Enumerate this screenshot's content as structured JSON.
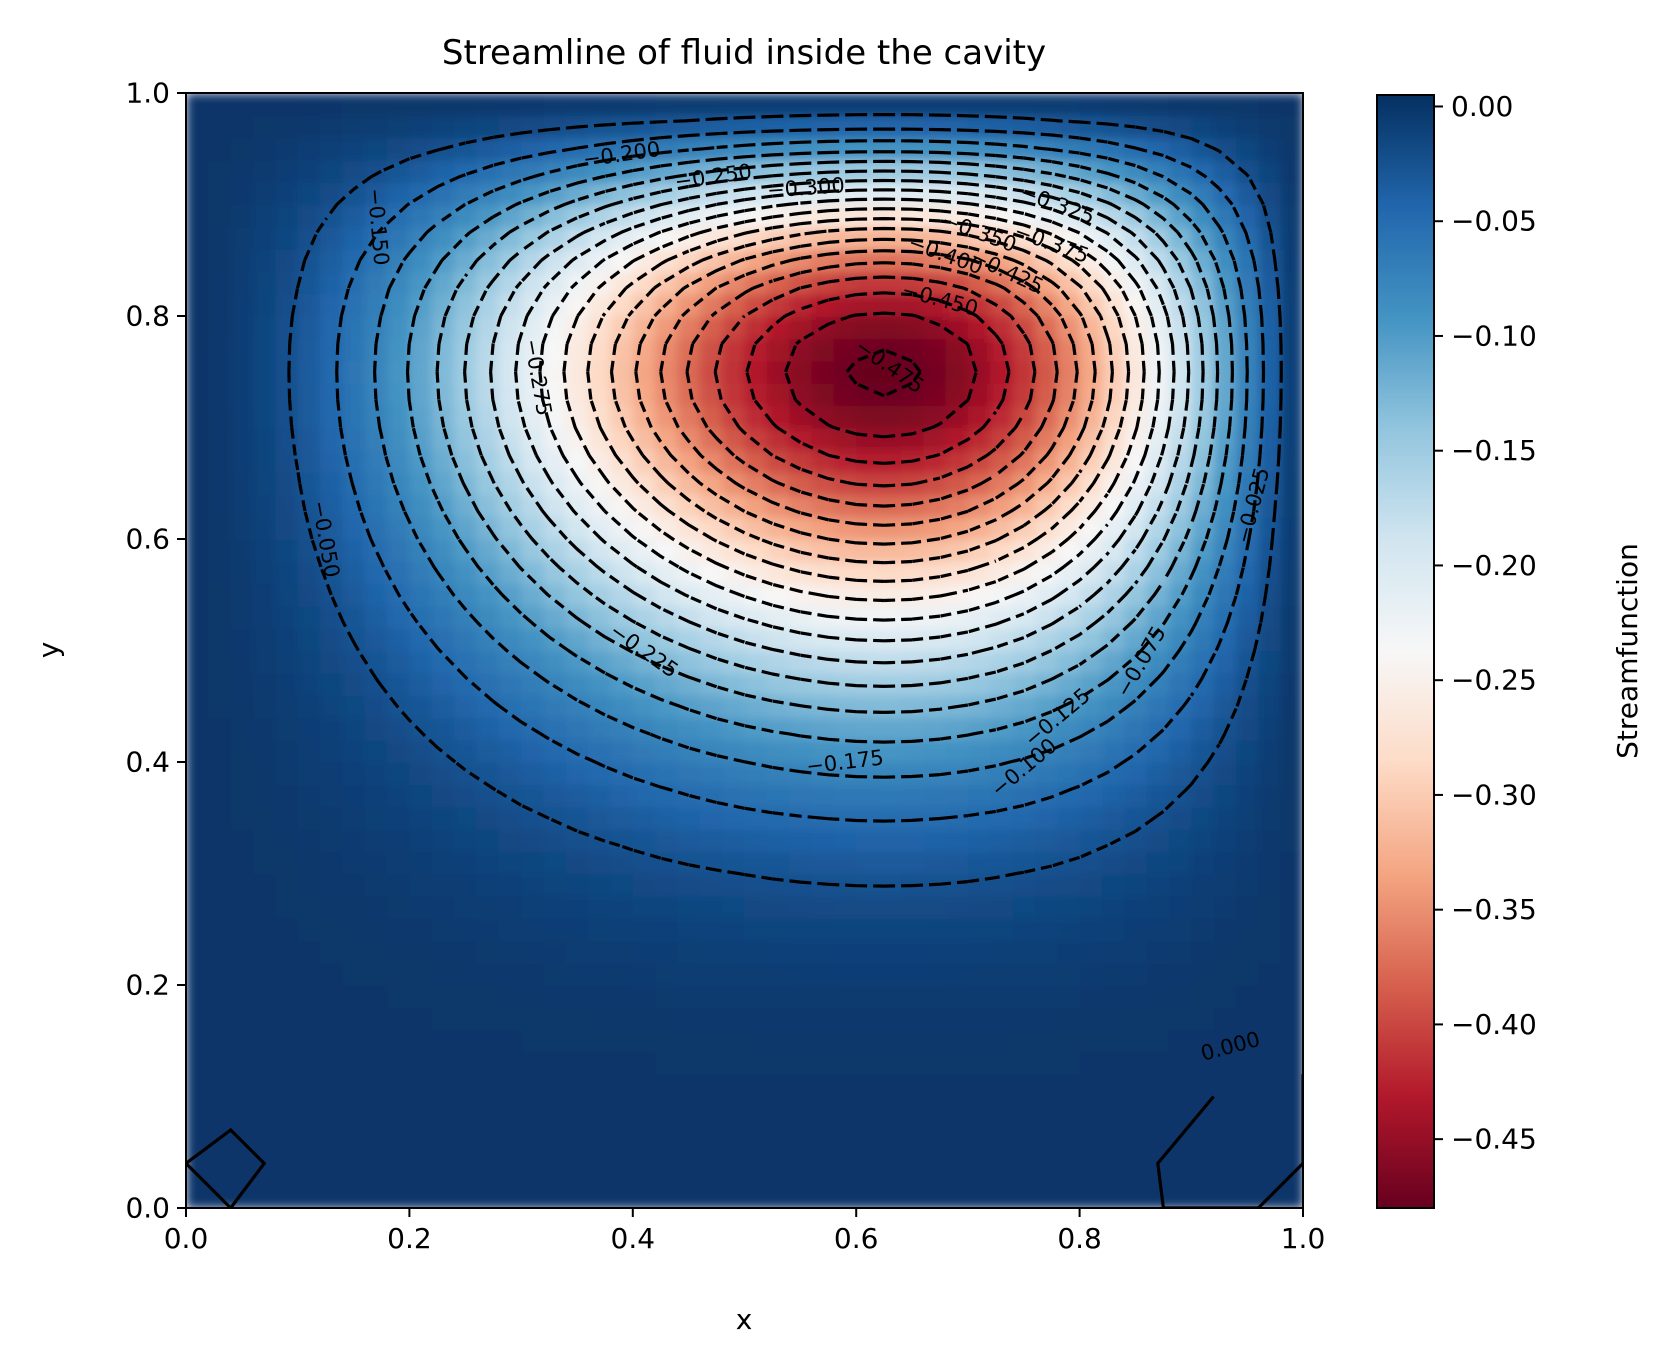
{
  "chart_data": {
    "type": "contour",
    "title": "Streamline of fluid inside the cavity",
    "xlabel": "x",
    "ylabel": "y",
    "xlim": [
      0.0,
      1.0
    ],
    "ylim": [
      0.0,
      1.0
    ],
    "x_ticks": [
      "0.0",
      "0.2",
      "0.4",
      "0.6",
      "0.8",
      "1.0"
    ],
    "y_ticks": [
      "0.0",
      "0.2",
      "0.4",
      "0.6",
      "0.8",
      "1.0"
    ],
    "colormap": "RdBu",
    "vortex_center": [
      0.625,
      0.75
    ],
    "min_value": -0.48,
    "contour_levels": [
      0.0,
      -0.025,
      -0.05,
      -0.075,
      -0.1,
      -0.125,
      -0.15,
      -0.175,
      -0.2,
      -0.225,
      -0.25,
      -0.275,
      -0.3,
      -0.325,
      -0.35,
      -0.375,
      -0.4,
      -0.425,
      -0.45,
      -0.475
    ],
    "contour_labels": [
      {
        "text": "0.000",
        "x": 0.935,
        "y": 0.145,
        "angle": -15
      },
      {
        "text": "−0.025",
        "x": 0.955,
        "y": 0.63,
        "angle": -75
      },
      {
        "text": "−0.050",
        "x": 0.125,
        "y": 0.6,
        "angle": 80
      },
      {
        "text": "−0.075",
        "x": 0.855,
        "y": 0.49,
        "angle": -60
      },
      {
        "text": "−0.100",
        "x": 0.75,
        "y": 0.395,
        "angle": -40
      },
      {
        "text": "−0.125",
        "x": 0.78,
        "y": 0.44,
        "angle": -40
      },
      {
        "text": "−0.150",
        "x": 0.172,
        "y": 0.88,
        "angle": 85
      },
      {
        "text": "−0.175",
        "x": 0.59,
        "y": 0.4,
        "angle": -7
      },
      {
        "text": "−0.200",
        "x": 0.39,
        "y": 0.945,
        "angle": -8
      },
      {
        "text": "−0.225",
        "x": 0.41,
        "y": 0.5,
        "angle": 35
      },
      {
        "text": "−0.250",
        "x": 0.472,
        "y": 0.925,
        "angle": -8
      },
      {
        "text": "−0.275",
        "x": 0.315,
        "y": 0.745,
        "angle": 80
      },
      {
        "text": "−0.300",
        "x": 0.555,
        "y": 0.915,
        "angle": -4
      },
      {
        "text": "−0.325",
        "x": 0.78,
        "y": 0.9,
        "angle": 20
      },
      {
        "text": "−0.350",
        "x": 0.71,
        "y": 0.875,
        "angle": 20
      },
      {
        "text": "−0.375",
        "x": 0.775,
        "y": 0.865,
        "angle": 20
      },
      {
        "text": "−0.400",
        "x": 0.68,
        "y": 0.855,
        "angle": 20
      },
      {
        "text": "−0.425",
        "x": 0.735,
        "y": 0.84,
        "angle": 25
      },
      {
        "text": "−0.450",
        "x": 0.675,
        "y": 0.815,
        "angle": 15
      },
      {
        "text": "−0.475",
        "x": 0.63,
        "y": 0.755,
        "angle": 35
      }
    ],
    "colorbar": {
      "label": "Streamfunction",
      "range": [
        -0.48,
        0.005
      ],
      "ticks": [
        "0.00",
        "−0.05",
        "−0.10",
        "−0.15",
        "−0.20",
        "−0.25",
        "−0.30",
        "−0.35",
        "−0.40",
        "−0.45"
      ],
      "tick_values": [
        0.0,
        -0.05,
        -0.1,
        -0.15,
        -0.2,
        -0.25,
        -0.3,
        -0.35,
        -0.4,
        -0.45
      ]
    },
    "zero_contours": [
      [
        [
          0.0,
          0.04
        ],
        [
          0.04,
          0.07
        ],
        [
          0.07,
          0.04
        ],
        [
          0.04,
          0.0
        ],
        [
          0.0,
          0.04
        ]
      ],
      [
        [
          0.92,
          0.1
        ],
        [
          0.87,
          0.04
        ],
        [
          0.875,
          0.0
        ],
        [
          0.96,
          0.0
        ],
        [
          1.0,
          0.04
        ],
        [
          1.0,
          0.12
        ]
      ]
    ]
  }
}
